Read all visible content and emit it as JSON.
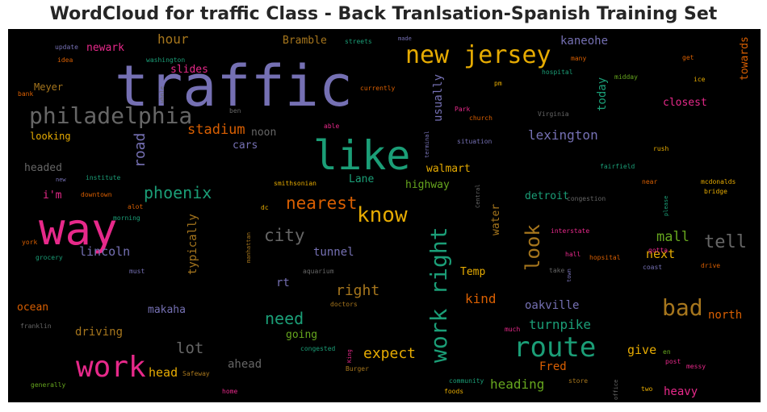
{
  "title": "WordCloud for traffic Class - Back Tranlsation-Spanish Training Set",
  "colors": {
    "purple": "#7570b3",
    "green": "#1b9e77",
    "orange": "#d95f02",
    "pink": "#e7298a",
    "lime": "#66a61e",
    "gold": "#e6ab02",
    "brown": "#a6761d",
    "gray": "#666666"
  },
  "words": {
    "traffic": "traffic",
    "like": "like",
    "way": "way",
    "work": "work",
    "route": "route",
    "new_jersey": "new jersey",
    "philadelphia": "philadelphia",
    "work_right": "work right",
    "know": "know",
    "bad": "bad",
    "nearest": "nearest",
    "phoenix": "phoenix",
    "city": "city",
    "look": "look",
    "tell": "tell",
    "mall": "mall",
    "need": "need",
    "right": "right",
    "next": "next",
    "lexington": "lexington",
    "expect": "expect",
    "heading": "heading",
    "lot": "lot",
    "stadium": "stadium",
    "hour": "hour",
    "road": "road",
    "lincoln": "lincoln",
    "tunnel": "tunnel",
    "typically": "typically",
    "kind": "kind",
    "oakville": "oakville",
    "turnpike": "turnpike",
    "give": "give",
    "heavy": "heavy",
    "north": "north",
    "fred": "Fred",
    "head": "head",
    "ahead": "ahead",
    "driving": "driving",
    "makaha": "makaha",
    "ocean": "ocean",
    "going": "going",
    "rt": "rt",
    "temp": "Temp",
    "detroit": "detroit",
    "walmart": "walmart",
    "highway": "highway",
    "water": "water",
    "usually": "usually",
    "today": "today",
    "kaneohe": "kaneohe",
    "closest": "closest",
    "towards": "towards",
    "slides": "slides",
    "newark": "newark",
    "bramble": "Bramble",
    "meyer": "Meyer",
    "looking": "looking",
    "headed": "headed",
    "im": "i'm",
    "cars": "cars",
    "noon": "noon",
    "lane": "Lane",
    "walk": "walk",
    "update": "update",
    "idea": "idea",
    "washington": "washington",
    "streets": "streets",
    "made": "made",
    "many": "many",
    "get": "get",
    "hospital": "hospital",
    "midday": "midday",
    "ice": "ice",
    "pm": "pm",
    "currently": "currently",
    "bank": "bank",
    "whole": "whole",
    "ben": "ben",
    "park": "Park",
    "church": "church",
    "virginia": "Virginia",
    "situation": "situation",
    "able": "able",
    "rush": "rush",
    "terminal": "terminal",
    "fairfield": "fairfield",
    "institute": "institute",
    "new": "new",
    "downtown": "downtown",
    "smithsonian": "smithsonian",
    "central": "Central",
    "congestion": "congestion",
    "near": "near",
    "mcdonalds": "mcdonalds",
    "bridge": "bridge",
    "please": "please",
    "alot": "alot",
    "morning": "morning",
    "dc": "dc",
    "interstate": "interstate",
    "york": "york",
    "grocery": "grocery",
    "manhattan": "manhattan",
    "gotta": "gotta",
    "hall": "hall",
    "hopsital": "hopsital",
    "drive": "drive",
    "coast": "coast",
    "take": "take",
    "town": "town",
    "must": "must",
    "aquarium": "aquarium",
    "doctors": "doctors",
    "franklin": "franklin",
    "much": "much",
    "congested": "congested",
    "king": "King",
    "en": "en",
    "post": "post",
    "messy": "messy",
    "safeway": "Safeway",
    "burger": "Burger",
    "community": "community",
    "store": "store",
    "generally": "generally",
    "office": "office",
    "two": "two",
    "home": "home",
    "foods": "foods"
  }
}
